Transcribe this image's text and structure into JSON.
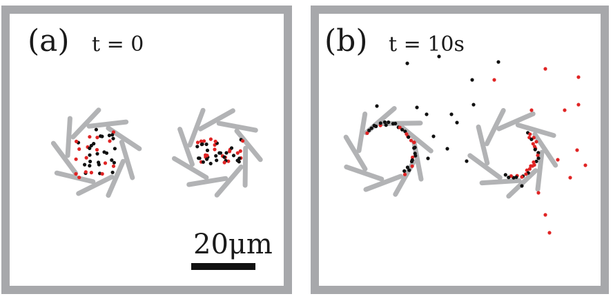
{
  "panels": [
    {
      "id": "a",
      "label": "(a)",
      "time": "t = 0"
    },
    {
      "id": "b",
      "label": "(b)",
      "time": "t = 10s"
    }
  ],
  "scale_bar": {
    "label": "20μm"
  },
  "colors": {
    "frame": "#a7a8ab",
    "blade": "#b2b3b5",
    "particle_black": "#111111",
    "particle_red": "#e02424"
  }
}
